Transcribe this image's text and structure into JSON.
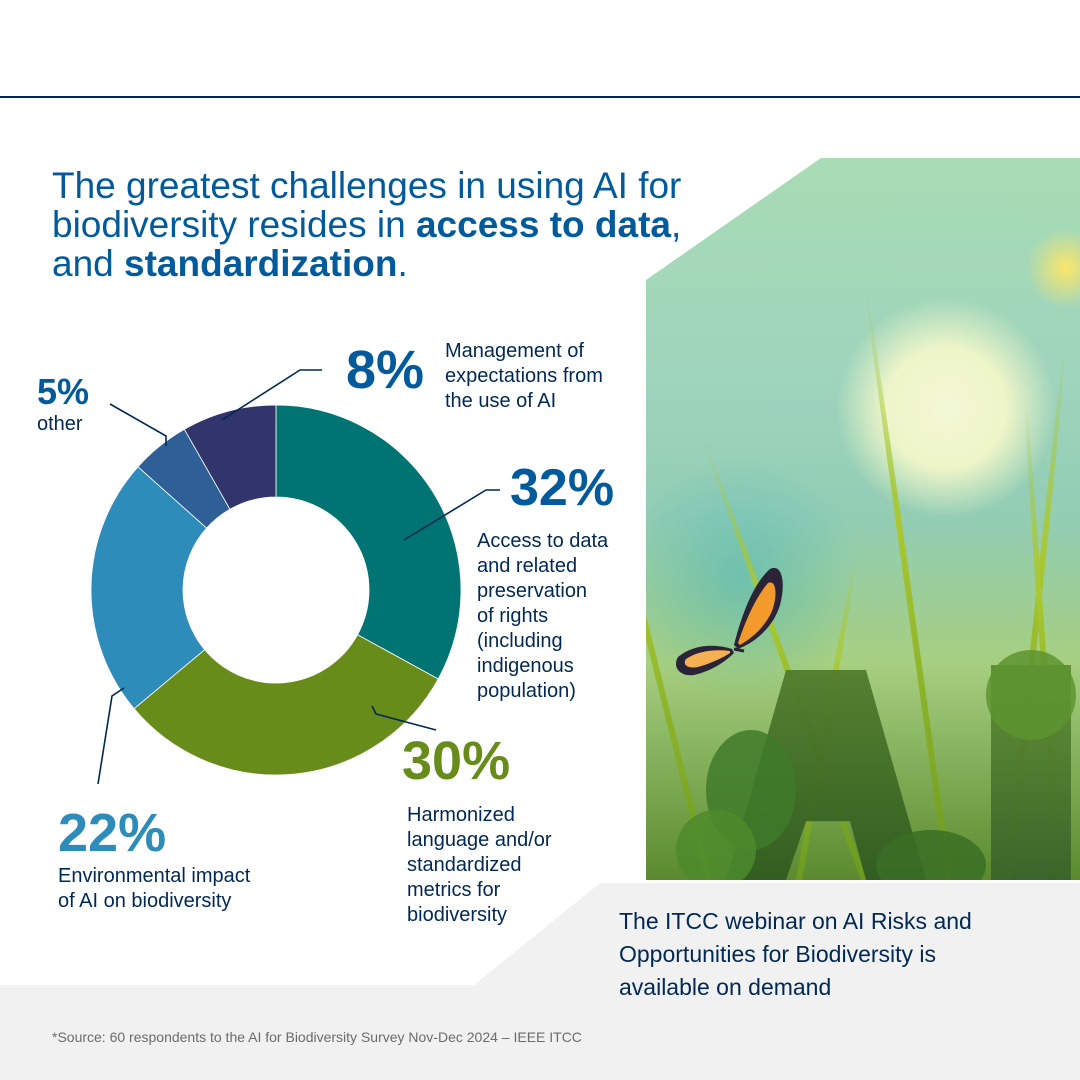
{
  "title": {
    "part1": "The greatest challenges in using AI for biodiversity resides in ",
    "bold1": "access to data",
    "part2": ", and ",
    "bold2": "standardization",
    "part3": "."
  },
  "colors": {
    "title_blue": "#005a9c",
    "navy": "#002855",
    "teal": "#007473",
    "green": "#678c1a",
    "light_blue": "#2e8cbb",
    "mid_blue": "#2e5f96",
    "dark_navy": "#32356c",
    "band_gray": "#f1f1f1"
  },
  "chart_data": {
    "type": "pie",
    "subtype": "donut",
    "title": "The greatest challenges in using AI for biodiversity resides in access to data, and standardization.",
    "categories": [
      "Access to data and related preservation of rights (including indigenous population)",
      "Harmonized language and/or standardized metrics for biodiversity",
      "Environmental impact of AI on biodiversity",
      "other",
      "Management of expectations from the use of AI"
    ],
    "values": [
      32,
      30,
      22,
      5,
      8
    ],
    "unit": "%",
    "colors": [
      "#007473",
      "#678c1a",
      "#2e8cbb",
      "#2e5f96",
      "#32356c"
    ],
    "start_angle": "12 o'clock, clockwise",
    "legend": "callout labels with leader lines"
  },
  "labels": {
    "s32": {
      "pct": "32%",
      "text": [
        "Access to data",
        "and related",
        "preservation",
        "of rights",
        "(including",
        "indigenous",
        "population)"
      ]
    },
    "s30": {
      "pct": "30%",
      "text": [
        "Harmonized",
        "language and/or",
        "standardized",
        "metrics for",
        "biodiversity"
      ]
    },
    "s22": {
      "pct": "22%",
      "text": [
        "Environmental impact",
        "of AI on biodiversity"
      ]
    },
    "s5": {
      "pct": "5%",
      "text": [
        "other"
      ]
    },
    "s8": {
      "pct": "8%",
      "text": [
        "Management of",
        "expectations from",
        "the use of AI"
      ]
    }
  },
  "webinar": {
    "lines": [
      "The ITCC webinar on AI Risks and",
      "Opportunities for Biodiversity is",
      "available on demand"
    ]
  },
  "footer": {
    "source": "*Source: 60 respondents to the AI for Biodiversity Survey Nov-Dec 2024 – IEEE ITCC"
  },
  "image": {
    "alt": "butterfly on moss-covered letters A I in a grassy meadow"
  }
}
